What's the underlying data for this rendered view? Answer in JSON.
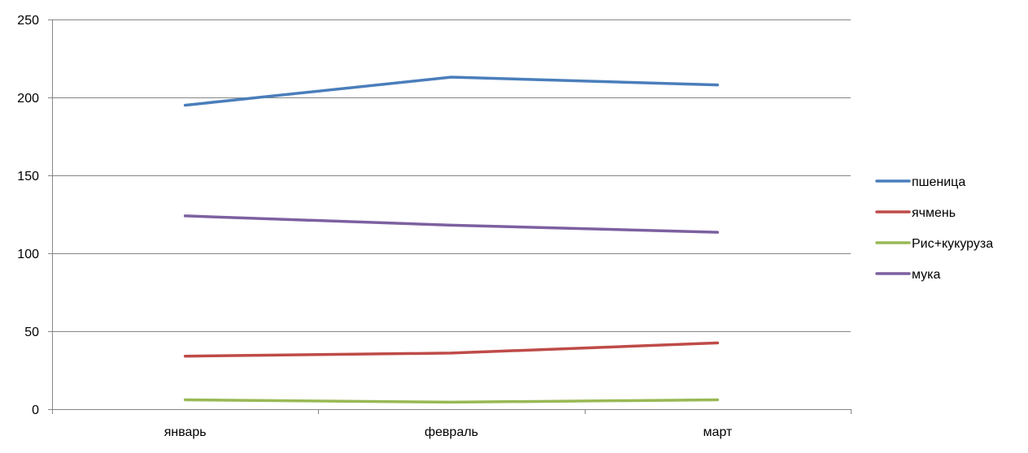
{
  "chart_data": {
    "type": "line",
    "categories": [
      "январь",
      "февраль",
      "март"
    ],
    "series": [
      {
        "name": "пшеница",
        "values": [
          195,
          213,
          208
        ],
        "color": "#4A7EBB"
      },
      {
        "name": "ячмень",
        "values": [
          34,
          36,
          42.5
        ],
        "color": "#BE4B48"
      },
      {
        "name": "Рис+кукуруза",
        "values": [
          6,
          4.5,
          6
        ],
        "color": "#98B954"
      },
      {
        "name": "мука",
        "values": [
          124,
          118,
          113.5
        ],
        "color": "#7D60A0"
      }
    ],
    "y_ticks": [
      "0",
      "50",
      "100",
      "150",
      "200",
      "250"
    ],
    "ylim": [
      0,
      250
    ],
    "grid": true,
    "legend_position": "right"
  }
}
